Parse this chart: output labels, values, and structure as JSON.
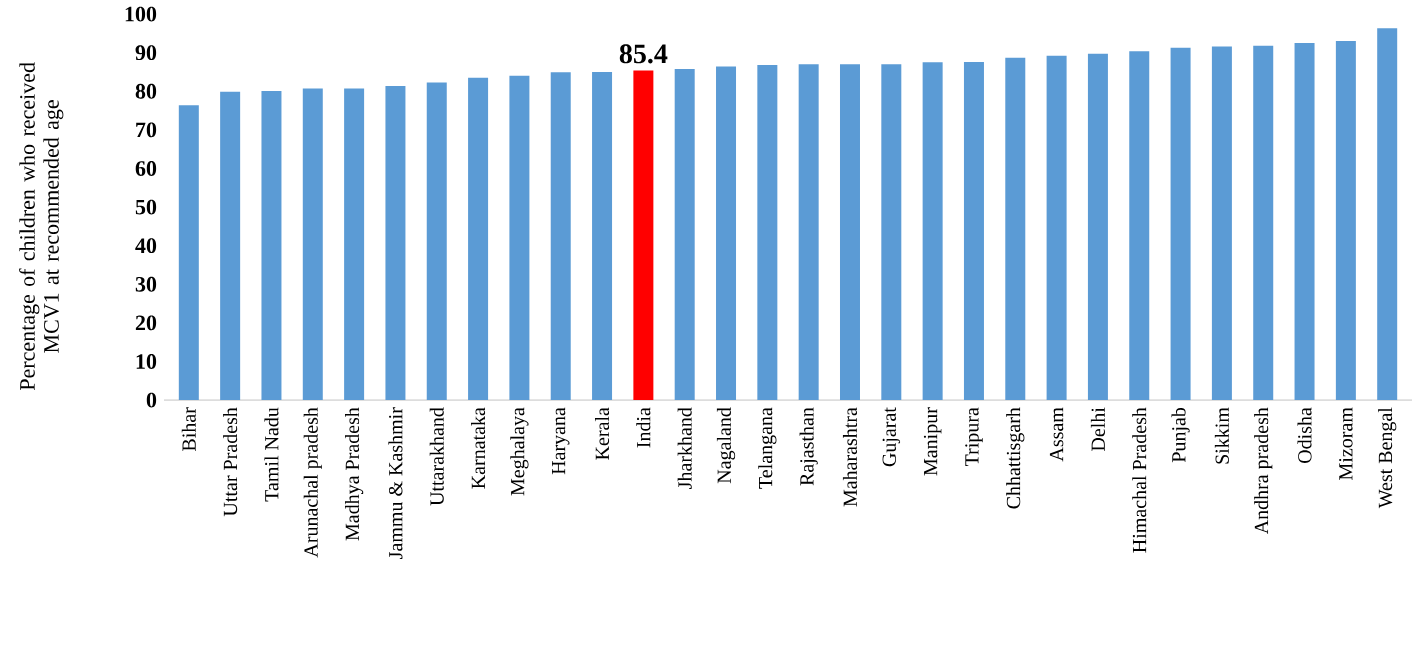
{
  "chart_data": {
    "type": "bar",
    "ylabel": "Percentage of children who received MCV1 at recommended age",
    "categories": [
      "Bihar",
      "Uttar Pradesh",
      "Tamil Nadu",
      "Arunachal pradesh",
      "Madhya Pradesh",
      "Jammu & Kashmir",
      "Uttarakhand",
      "Karnataka",
      "Meghalaya",
      "Haryana",
      "Kerala",
      "India",
      "Jharkhand",
      "Nagaland",
      "Telangana",
      "Rajasthan",
      "Maharashtra",
      "Gujarat",
      "Manipur",
      "Tripura",
      "Chhattisgarh",
      "Assam",
      "Delhi",
      "Himachal Pradesh",
      "Punjab",
      "Sikkim",
      "Andhra pradesh",
      "Odisha",
      "Mizoram",
      "West Bengal"
    ],
    "values": [
      76.4,
      79.9,
      80.1,
      80.7,
      80.7,
      81.4,
      82.3,
      83.5,
      84.0,
      84.9,
      85.0,
      85.4,
      85.8,
      86.4,
      86.8,
      87.0,
      87.0,
      87.0,
      87.5,
      87.6,
      88.7,
      89.2,
      89.7,
      90.4,
      91.3,
      91.6,
      91.8,
      92.5,
      93.0,
      96.3
    ],
    "colors": [
      "#5b9bd5",
      "#5b9bd5",
      "#5b9bd5",
      "#5b9bd5",
      "#5b9bd5",
      "#5b9bd5",
      "#5b9bd5",
      "#5b9bd5",
      "#5b9bd5",
      "#5b9bd5",
      "#5b9bd5",
      "#ff0000",
      "#5b9bd5",
      "#5b9bd5",
      "#5b9bd5",
      "#5b9bd5",
      "#5b9bd5",
      "#5b9bd5",
      "#5b9bd5",
      "#5b9bd5",
      "#5b9bd5",
      "#5b9bd5",
      "#5b9bd5",
      "#5b9bd5",
      "#5b9bd5",
      "#5b9bd5",
      "#5b9bd5",
      "#5b9bd5",
      "#5b9bd5",
      "#5b9bd5"
    ],
    "value_labels": [
      null,
      null,
      null,
      null,
      null,
      null,
      null,
      null,
      null,
      null,
      null,
      "85.4",
      null,
      null,
      null,
      null,
      null,
      null,
      null,
      null,
      null,
      null,
      null,
      null,
      null,
      null,
      null,
      null,
      null,
      null
    ],
    "ylim": [
      0,
      100
    ],
    "yticks": [
      0,
      10,
      20,
      30,
      40,
      50,
      60,
      70,
      80,
      90,
      100
    ],
    "grid": false
  }
}
